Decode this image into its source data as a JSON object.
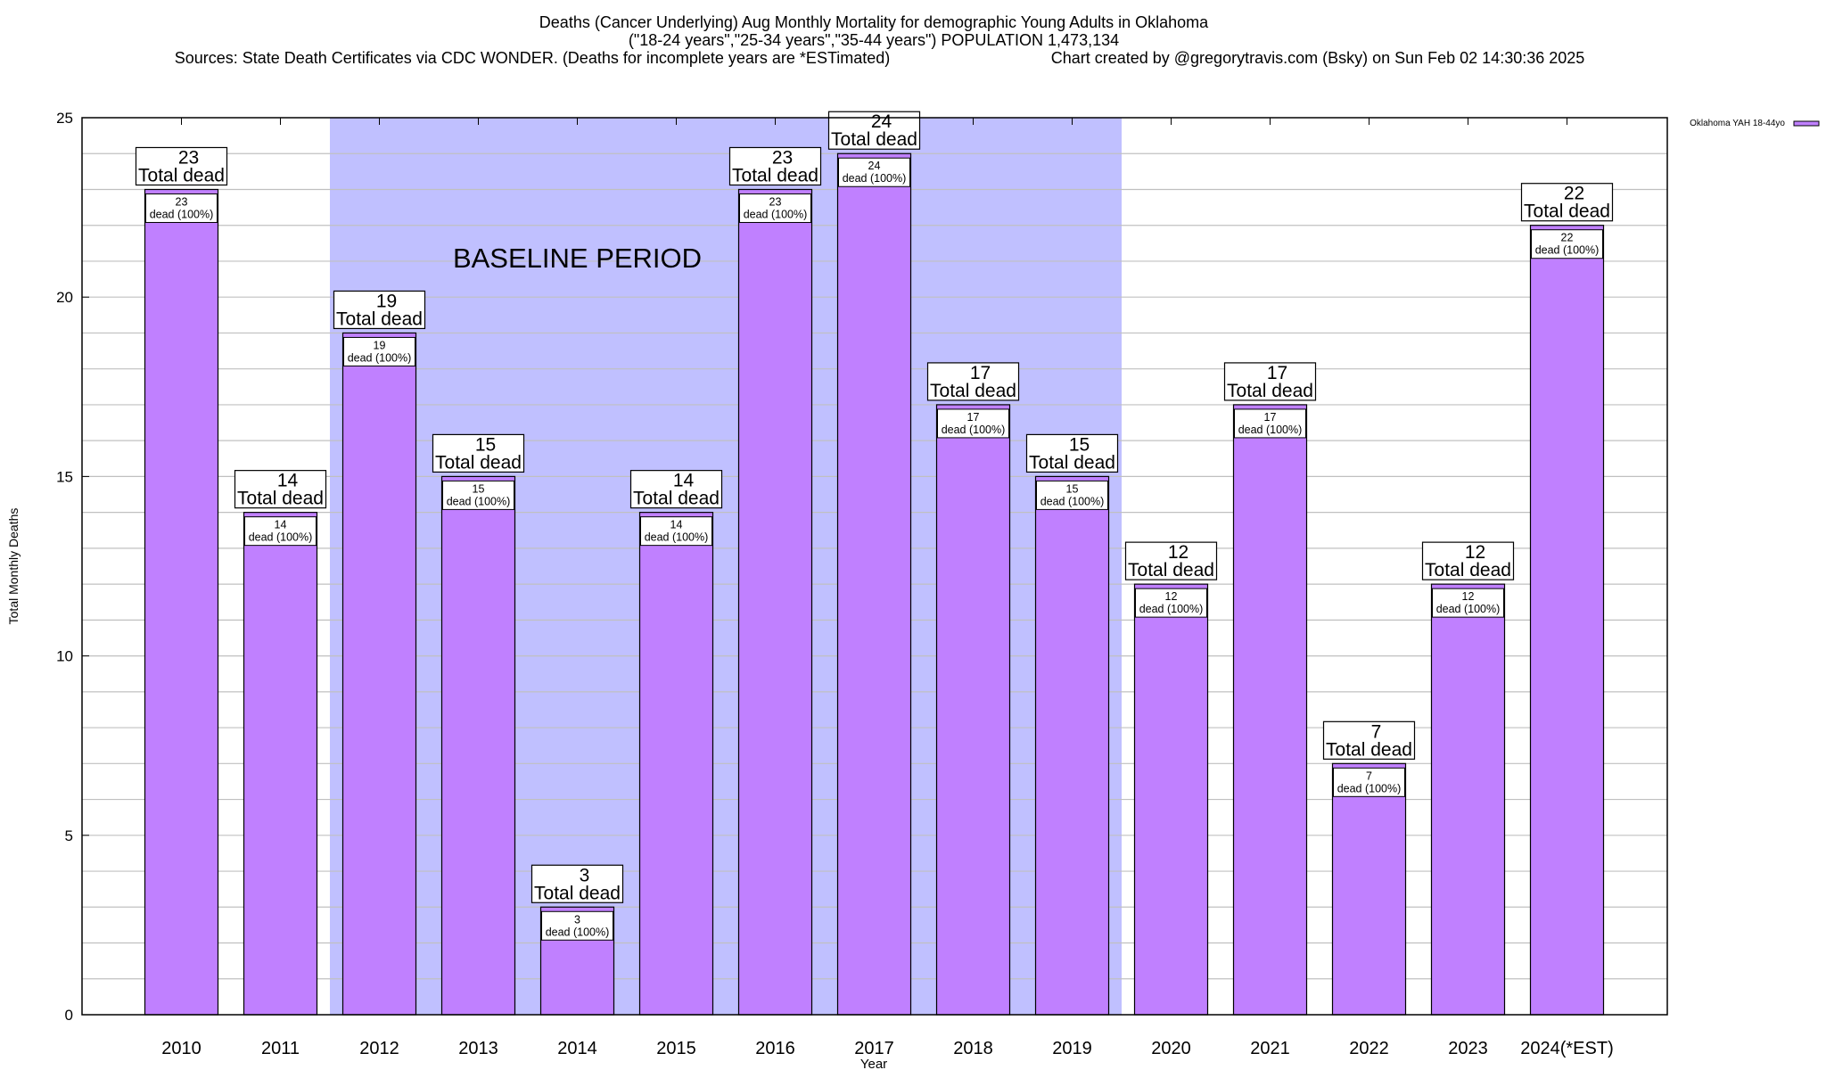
{
  "chart_data": {
    "type": "bar",
    "title": "Deaths (Cancer Underlying) Aug Monthly Mortality for demographic Young Adults in Oklahoma",
    "subtitle": "(\"18-24 years\",\"25-34 years\",\"35-44 years\") POPULATION 1,473,134",
    "sources": "Sources: State Death Certificates via CDC WONDER. (Deaths for incomplete years are *ESTimated)",
    "credit": "Chart created by @gregorytravis.com (Bsky) on Sun Feb 02 14:30:36 2025",
    "xlabel": "Year",
    "ylabel": "Total Monthly Deaths",
    "ylim": [
      0,
      25
    ],
    "yticks": [
      0,
      5,
      10,
      15,
      20,
      25
    ],
    "grid": "horizontal every 1",
    "legend_placement": "top-right outside",
    "categories": [
      "2010",
      "2011",
      "2012",
      "2013",
      "2014",
      "2015",
      "2016",
      "2017",
      "2018",
      "2019",
      "2020",
      "2021",
      "2022",
      "2023",
      "2024(*EST)"
    ],
    "series": [
      {
        "name": "Oklahoma YAH 18-44yo",
        "values": [
          23,
          14,
          19,
          15,
          3,
          14,
          23,
          24,
          17,
          15,
          12,
          17,
          7,
          12,
          22
        ]
      }
    ],
    "total_label_suffix": "Total dead",
    "inner_label_suffix": "dead (100%)",
    "baseline": {
      "label": "BASELINE PERIOD",
      "from": "2012",
      "to": "2019"
    },
    "colors": {
      "bar": "#c080ff",
      "baseline_shade": "#c0c0ff",
      "grid": "#c0c0c0"
    }
  }
}
